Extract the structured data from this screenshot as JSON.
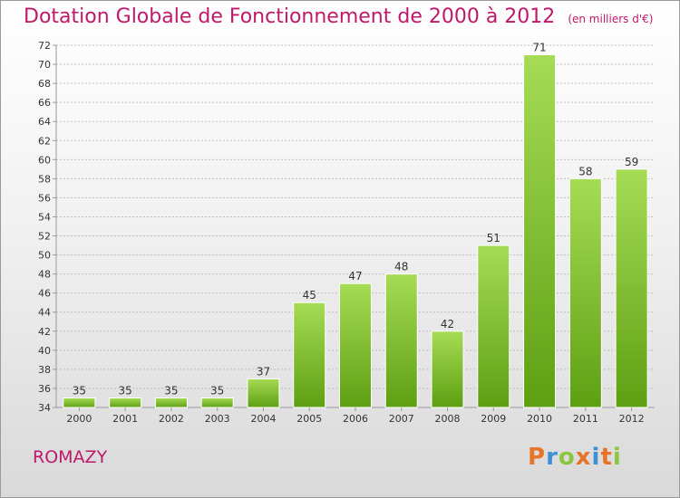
{
  "title": "Dotation Globale de Fonctionnement de 2000 à 2012",
  "unit_note": "(en milliers d'€)",
  "commune": "ROMAZY",
  "logo": {
    "letters": [
      "P",
      "r",
      "o",
      "x",
      "i",
      "t",
      "i"
    ],
    "colors": [
      "#e8742a",
      "#3d8fd6",
      "#8cc63f",
      "#e8742a",
      "#3d8fd6",
      "#e8742a",
      "#8cc63f"
    ]
  },
  "colors": {
    "title": "#c0186a",
    "bar_light": "#a6dc55",
    "bar_dark": "#5e9f12",
    "grid": "#bdbdbd",
    "axis_text": "#333333"
  },
  "chart_data": {
    "type": "bar",
    "categories": [
      "2000",
      "2001",
      "2002",
      "2003",
      "2004",
      "2005",
      "2006",
      "2007",
      "2008",
      "2009",
      "2010",
      "2011",
      "2012"
    ],
    "values": [
      35,
      35,
      35,
      35,
      37,
      45,
      47,
      48,
      42,
      51,
      71,
      58,
      59
    ],
    "ylim": [
      34,
      72
    ],
    "yticks": [
      34,
      36,
      38,
      40,
      42,
      44,
      46,
      48,
      50,
      52,
      54,
      56,
      58,
      60,
      62,
      64,
      66,
      68,
      70,
      72
    ],
    "grid": true,
    "data_labels": true
  }
}
